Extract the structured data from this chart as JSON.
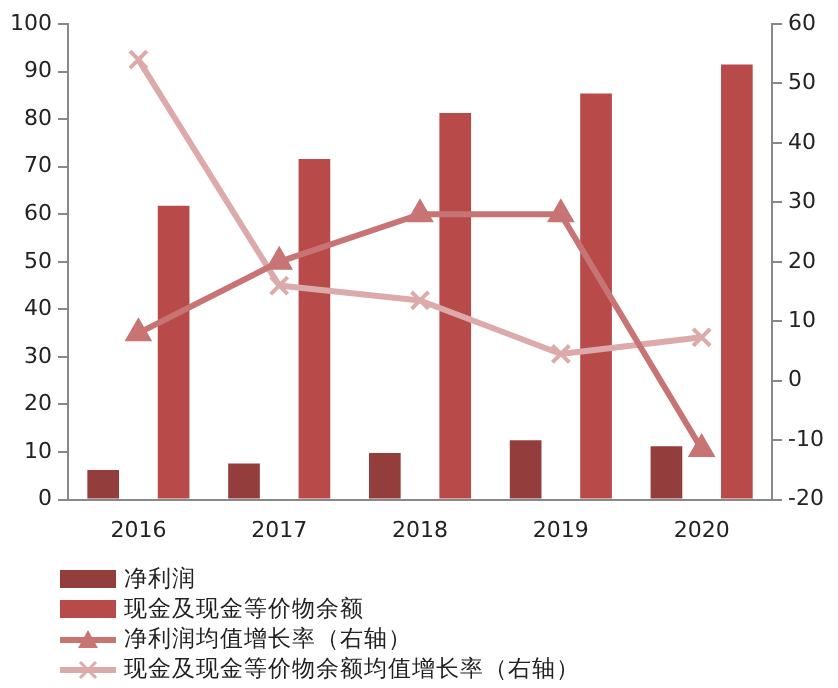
{
  "chart_data": {
    "type": "bar",
    "categories": [
      "2016",
      "2017",
      "2018",
      "2019",
      "2020"
    ],
    "series": [
      {
        "name": "净利润",
        "color": "#943d3d",
        "values": [
          6.2,
          7.6,
          9.8,
          12.5,
          11.2
        ]
      },
      {
        "name": "现金及现金等价物余额",
        "color": "#b84a4a",
        "values": [
          61.8,
          71.6,
          81.3,
          85.4,
          91.5
        ]
      },
      {
        "name": "净利润均值增长率（右轴）",
        "type": "line",
        "axis": "y2",
        "marker": "triangle",
        "color": "#c97474",
        "values": [
          8,
          20,
          28,
          28,
          -11.5
        ]
      },
      {
        "name": "现金及现金等价物余额均值增长率（右轴）",
        "type": "line",
        "axis": "y2",
        "marker": "cross",
        "color": "#dcaaaa",
        "values": [
          54,
          16,
          13.5,
          4.5,
          7.3
        ]
      }
    ],
    "ylim": [
      0,
      100
    ],
    "yticks": [
      0,
      10,
      20,
      30,
      40,
      50,
      60,
      70,
      80,
      90,
      100
    ],
    "y2lim": [
      -20,
      60
    ],
    "y2ticks": [
      -20,
      -10,
      0,
      10,
      20,
      30,
      40,
      50,
      60
    ],
    "grid": false,
    "legend": "bottom left"
  }
}
